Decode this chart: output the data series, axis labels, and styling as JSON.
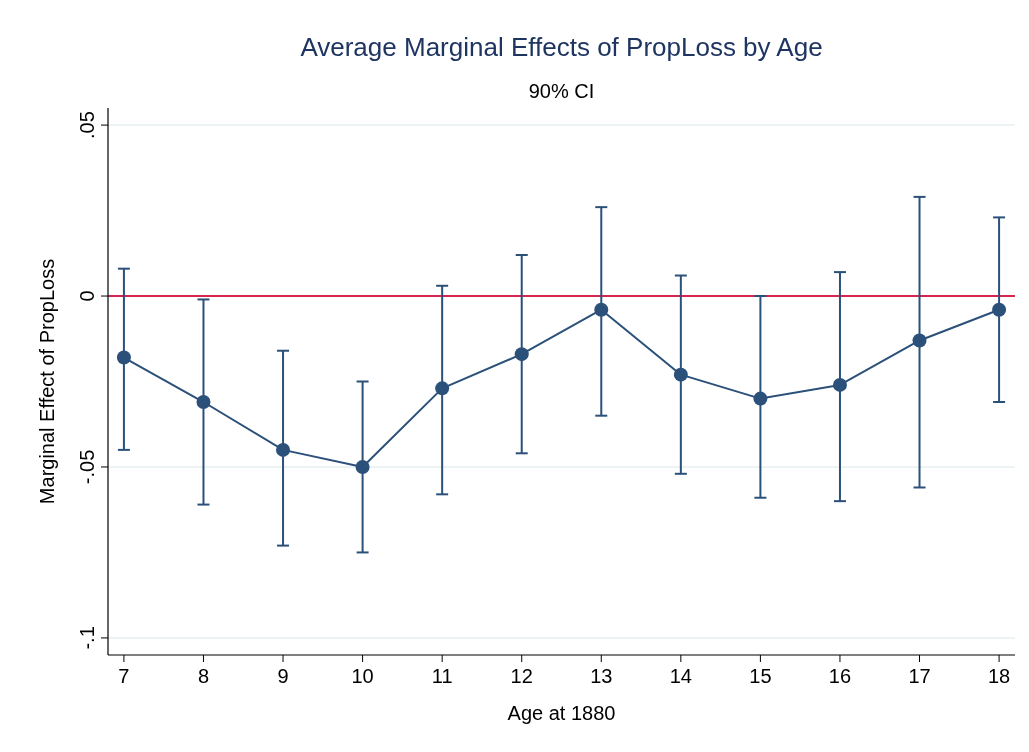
{
  "chart_data": {
    "type": "line",
    "title": "Average Marginal Effects of PropLoss by Age",
    "subtitle": "90% CI",
    "xlabel": "Age at 1880",
    "ylabel": "Marginal Effect of PropLoss",
    "x": [
      7,
      8,
      9,
      10,
      11,
      12,
      13,
      14,
      15,
      16,
      17,
      18
    ],
    "series": [
      {
        "color": "#2b5079",
        "values": [
          -0.018,
          -0.031,
          -0.045,
          -0.05,
          -0.027,
          -0.017,
          -0.004,
          -0.023,
          -0.03,
          -0.026,
          -0.013,
          -0.004
        ],
        "errors": [
          [
            -0.045,
            0.008
          ],
          [
            -0.061,
            -0.001
          ],
          [
            -0.073,
            -0.016
          ],
          [
            -0.075,
            -0.025
          ],
          [
            -0.058,
            0.003
          ],
          [
            -0.046,
            0.012
          ],
          [
            -0.035,
            0.026
          ],
          [
            -0.052,
            0.006
          ],
          [
            -0.059,
            0.0
          ],
          [
            -0.06,
            0.007
          ],
          [
            -0.056,
            0.029
          ],
          [
            -0.031,
            0.023
          ]
        ]
      }
    ],
    "xlim": [
      6.8,
      18.2
    ],
    "xticks": [
      7,
      8,
      9,
      10,
      11,
      12,
      13,
      14,
      15,
      16,
      17,
      18
    ],
    "ylim": [
      -0.105,
      0.055
    ],
    "yticks": [
      {
        "value": 0.05,
        "label": ".05"
      },
      {
        "value": 0,
        "label": "0"
      },
      {
        "value": -0.05,
        "label": "-.05"
      },
      {
        "value": -0.1,
        "label": "-.1"
      }
    ],
    "grid": "y",
    "marker": "circle",
    "line_style": "solid",
    "ref_lines": [
      {
        "axis": "y",
        "value": 0,
        "color": "#d6264f"
      }
    ]
  }
}
